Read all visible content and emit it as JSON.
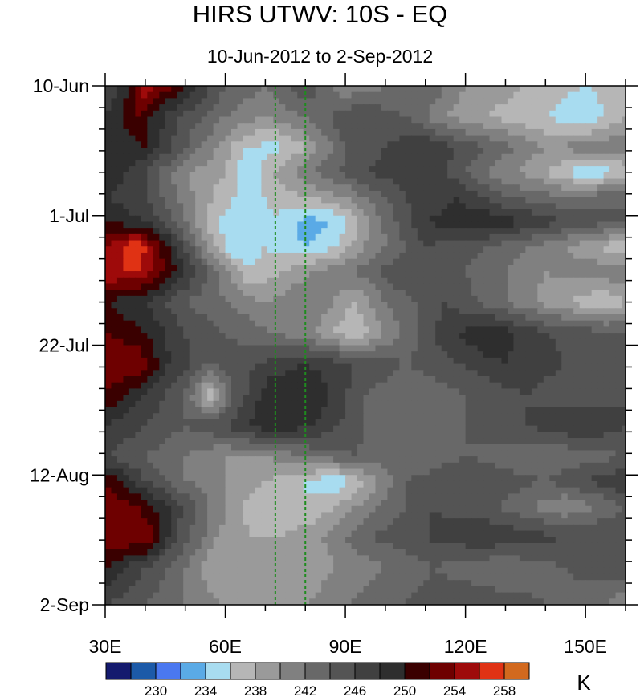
{
  "chart_data": {
    "type": "heatmap",
    "title": "HIRS UTWV: 10S - EQ",
    "subtitle": "10-Jun-2012 to 2-Sep-2012",
    "x_axis": {
      "range": [
        30,
        160
      ],
      "ticks": [
        30,
        60,
        90,
        120,
        150
      ],
      "tick_labels": [
        "30E",
        "60E",
        "90E",
        "120E",
        "150E"
      ]
    },
    "y_axis": {
      "range_days_from_top": [
        0,
        84
      ],
      "tick_days": [
        0,
        21,
        42,
        63,
        84
      ],
      "tick_labels": [
        "10-Jun",
        "1-Jul",
        "22-Jul",
        "12-Aug",
        "2-Sep"
      ]
    },
    "reference_lines_lon": [
      72.5,
      80
    ],
    "colorbar": {
      "unit": "K",
      "colors": [
        "#141a6e",
        "#1c5aa8",
        "#4a78f0",
        "#5aaae6",
        "#a8dcf0",
        "#b6b6b6",
        "#9a9a9a",
        "#808080",
        "#686868",
        "#545454",
        "#404040",
        "#2e2e2e",
        "#3a0000",
        "#6e0000",
        "#9e0a0a",
        "#e03214",
        "#d2691e"
      ],
      "tick_values": [
        "230",
        "234",
        "238",
        "242",
        "246",
        "250",
        "254",
        "258"
      ]
    },
    "bands": [
      {
        "day": 0,
        "lon_values": [
          [
            30,
            246
          ],
          [
            36,
            250
          ],
          [
            40,
            256
          ],
          [
            50,
            250
          ],
          [
            60,
            244
          ],
          [
            70,
            242
          ],
          [
            80,
            246
          ],
          [
            90,
            240
          ],
          [
            100,
            242
          ],
          [
            110,
            244
          ],
          [
            120,
            240
          ],
          [
            135,
            238
          ],
          [
            150,
            236
          ],
          [
            160,
            238
          ]
        ]
      },
      {
        "day": 5,
        "lon_values": [
          [
            30,
            248
          ],
          [
            38,
            252
          ],
          [
            48,
            246
          ],
          [
            60,
            242
          ],
          [
            70,
            240
          ],
          [
            80,
            242
          ],
          [
            92,
            246
          ],
          [
            105,
            244
          ],
          [
            115,
            240
          ],
          [
            125,
            238
          ],
          [
            140,
            236
          ],
          [
            150,
            234
          ],
          [
            160,
            238
          ]
        ]
      },
      {
        "day": 10,
        "lon_values": [
          [
            30,
            248
          ],
          [
            40,
            250
          ],
          [
            50,
            244
          ],
          [
            58,
            240
          ],
          [
            65,
            236
          ],
          [
            72,
            235
          ],
          [
            80,
            238
          ],
          [
            90,
            244
          ],
          [
            100,
            246
          ],
          [
            110,
            248
          ],
          [
            125,
            244
          ],
          [
            140,
            240
          ],
          [
            160,
            242
          ]
        ]
      },
      {
        "day": 14,
        "lon_values": [
          [
            30,
            250
          ],
          [
            40,
            246
          ],
          [
            50,
            240
          ],
          [
            60,
            238
          ],
          [
            66,
            234
          ],
          [
            72,
            238
          ],
          [
            82,
            242
          ],
          [
            95,
            246
          ],
          [
            110,
            248
          ],
          [
            125,
            242
          ],
          [
            140,
            238
          ],
          [
            150,
            234
          ],
          [
            160,
            236
          ]
        ]
      },
      {
        "day": 18,
        "lon_values": [
          [
            30,
            248
          ],
          [
            40,
            246
          ],
          [
            52,
            240
          ],
          [
            62,
            236
          ],
          [
            70,
            236
          ],
          [
            80,
            238
          ],
          [
            90,
            240
          ],
          [
            105,
            246
          ],
          [
            118,
            248
          ],
          [
            130,
            244
          ],
          [
            145,
            242
          ],
          [
            160,
            244
          ]
        ]
      },
      {
        "day": 22,
        "lon_values": [
          [
            30,
            250
          ],
          [
            40,
            248
          ],
          [
            50,
            242
          ],
          [
            58,
            236
          ],
          [
            65,
            234
          ],
          [
            72,
            236
          ],
          [
            80,
            233
          ],
          [
            88,
            234
          ],
          [
            96,
            240
          ],
          [
            110,
            248
          ],
          [
            125,
            250
          ],
          [
            145,
            246
          ],
          [
            160,
            244
          ]
        ]
      },
      {
        "day": 26,
        "lon_values": [
          [
            30,
            254
          ],
          [
            38,
            258
          ],
          [
            46,
            250
          ],
          [
            55,
            240
          ],
          [
            62,
            234
          ],
          [
            70,
            236
          ],
          [
            80,
            234
          ],
          [
            88,
            236
          ],
          [
            95,
            240
          ],
          [
            110,
            246
          ],
          [
            125,
            244
          ],
          [
            145,
            240
          ],
          [
            160,
            236
          ]
        ]
      },
      {
        "day": 30,
        "lon_values": [
          [
            30,
            256
          ],
          [
            38,
            256
          ],
          [
            48,
            250
          ],
          [
            58,
            242
          ],
          [
            66,
            236
          ],
          [
            74,
            238
          ],
          [
            82,
            240
          ],
          [
            92,
            242
          ],
          [
            105,
            246
          ],
          [
            120,
            244
          ],
          [
            140,
            240
          ],
          [
            160,
            242
          ]
        ]
      },
      {
        "day": 35,
        "lon_values": [
          [
            30,
            250
          ],
          [
            40,
            248
          ],
          [
            50,
            244
          ],
          [
            60,
            242
          ],
          [
            70,
            240
          ],
          [
            82,
            242
          ],
          [
            92,
            238
          ],
          [
            100,
            242
          ],
          [
            115,
            246
          ],
          [
            130,
            242
          ],
          [
            145,
            238
          ],
          [
            155,
            236
          ],
          [
            160,
            238
          ]
        ]
      },
      {
        "day": 40,
        "lon_values": [
          [
            30,
            252
          ],
          [
            40,
            250
          ],
          [
            50,
            246
          ],
          [
            60,
            244
          ],
          [
            72,
            242
          ],
          [
            82,
            240
          ],
          [
            92,
            236
          ],
          [
            100,
            240
          ],
          [
            112,
            246
          ],
          [
            125,
            250
          ],
          [
            140,
            246
          ],
          [
            160,
            244
          ]
        ]
      },
      {
        "day": 45,
        "lon_values": [
          [
            30,
            254
          ],
          [
            38,
            254
          ],
          [
            46,
            248
          ],
          [
            56,
            244
          ],
          [
            68,
            246
          ],
          [
            80,
            248
          ],
          [
            92,
            246
          ],
          [
            105,
            244
          ],
          [
            118,
            246
          ],
          [
            130,
            248
          ],
          [
            145,
            246
          ],
          [
            160,
            246
          ]
        ]
      },
      {
        "day": 50,
        "lon_values": [
          [
            30,
            252
          ],
          [
            40,
            248
          ],
          [
            50,
            244
          ],
          [
            56,
            236
          ],
          [
            62,
            244
          ],
          [
            72,
            250
          ],
          [
            82,
            250
          ],
          [
            95,
            244
          ],
          [
            108,
            242
          ],
          [
            120,
            244
          ],
          [
            135,
            246
          ],
          [
            150,
            244
          ],
          [
            160,
            246
          ]
        ]
      },
      {
        "day": 55,
        "lon_values": [
          [
            30,
            248
          ],
          [
            40,
            246
          ],
          [
            50,
            244
          ],
          [
            60,
            246
          ],
          [
            72,
            250
          ],
          [
            82,
            248
          ],
          [
            95,
            244
          ],
          [
            108,
            242
          ],
          [
            120,
            244
          ],
          [
            135,
            246
          ],
          [
            150,
            248
          ],
          [
            160,
            246
          ]
        ]
      },
      {
        "day": 60,
        "lon_values": [
          [
            30,
            246
          ],
          [
            40,
            244
          ],
          [
            50,
            242
          ],
          [
            60,
            240
          ],
          [
            70,
            240
          ],
          [
            80,
            242
          ],
          [
            92,
            244
          ],
          [
            105,
            242
          ],
          [
            120,
            244
          ],
          [
            140,
            242
          ],
          [
            160,
            244
          ]
        ]
      },
      {
        "day": 64,
        "lon_values": [
          [
            30,
            252
          ],
          [
            40,
            246
          ],
          [
            50,
            242
          ],
          [
            60,
            240
          ],
          [
            70,
            238
          ],
          [
            80,
            236
          ],
          [
            88,
            234
          ],
          [
            95,
            238
          ],
          [
            105,
            244
          ],
          [
            120,
            246
          ],
          [
            140,
            244
          ],
          [
            160,
            248
          ]
        ]
      },
      {
        "day": 68,
        "lon_values": [
          [
            30,
            254
          ],
          [
            38,
            252
          ],
          [
            46,
            248
          ],
          [
            56,
            242
          ],
          [
            64,
            238
          ],
          [
            72,
            236
          ],
          [
            80,
            236
          ],
          [
            88,
            238
          ],
          [
            98,
            242
          ],
          [
            112,
            246
          ],
          [
            128,
            244
          ],
          [
            145,
            240
          ],
          [
            160,
            244
          ]
        ]
      },
      {
        "day": 73,
        "lon_values": [
          [
            30,
            254
          ],
          [
            40,
            254
          ],
          [
            48,
            246
          ],
          [
            58,
            240
          ],
          [
            66,
            238
          ],
          [
            74,
            238
          ],
          [
            84,
            240
          ],
          [
            96,
            244
          ],
          [
            110,
            246
          ],
          [
            125,
            248
          ],
          [
            145,
            246
          ],
          [
            160,
            246
          ]
        ]
      },
      {
        "day": 78,
        "lon_values": [
          [
            30,
            250
          ],
          [
            40,
            246
          ],
          [
            50,
            242
          ],
          [
            58,
            238
          ],
          [
            68,
            238
          ],
          [
            78,
            238
          ],
          [
            88,
            240
          ],
          [
            100,
            242
          ],
          [
            112,
            244
          ],
          [
            128,
            242
          ],
          [
            145,
            244
          ],
          [
            160,
            246
          ]
        ]
      },
      {
        "day": 84,
        "lon_values": [
          [
            30,
            246
          ],
          [
            40,
            244
          ],
          [
            50,
            242
          ],
          [
            60,
            240
          ],
          [
            70,
            240
          ],
          [
            80,
            240
          ],
          [
            90,
            242
          ],
          [
            105,
            244
          ],
          [
            120,
            246
          ],
          [
            140,
            244
          ],
          [
            155,
            242
          ],
          [
            160,
            240
          ]
        ]
      }
    ]
  }
}
